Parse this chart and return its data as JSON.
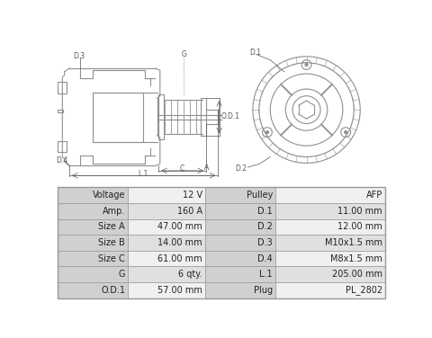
{
  "bg_color": "#ffffff",
  "table_header_bg": "#d0d0d0",
  "table_row_bg_light": "#f0f0f0",
  "table_row_bg_dark": "#e0e0e0",
  "table_border_color": "#999999",
  "table_data": [
    [
      "Voltage",
      "12 V",
      "Pulley",
      "AFP"
    ],
    [
      "Amp.",
      "160 A",
      "D.1",
      "11.00 mm"
    ],
    [
      "Size A",
      "47.00 mm",
      "D.2",
      "12.00 mm"
    ],
    [
      "Size B",
      "14.00 mm",
      "D.3",
      "M10x1.5 mm"
    ],
    [
      "Size C",
      "61.00 mm",
      "D.4",
      "M8x1.5 mm"
    ],
    [
      "G",
      "6 qty.",
      "L.1",
      "205.00 mm"
    ],
    [
      "O.D.1",
      "57.00 mm",
      "Plug",
      "PL_2802"
    ]
  ],
  "drawing_line_color": "#909090",
  "label_color": "#555555",
  "font_size_table": 7.0,
  "font_size_label": 5.5
}
